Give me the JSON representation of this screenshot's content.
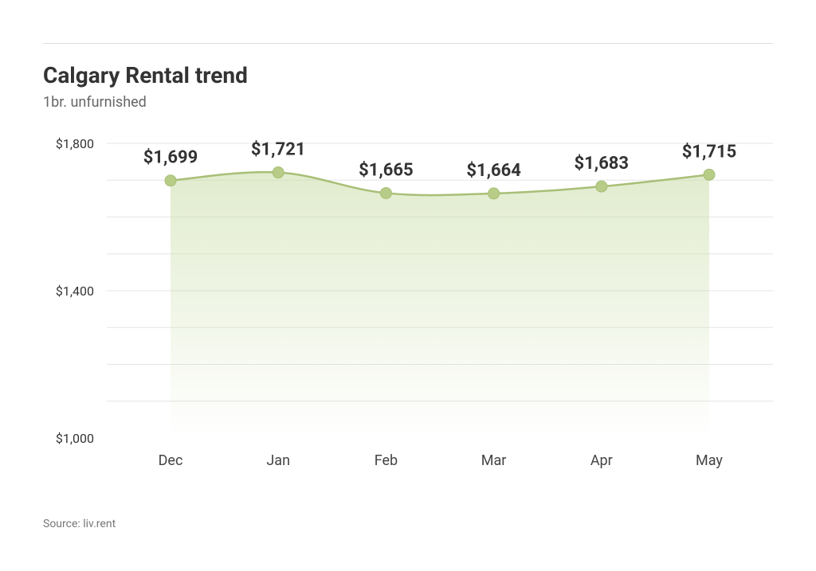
{
  "title": "Calgary Rental trend",
  "subtitle": "1br. unfurnished",
  "source": "Source: liv.rent",
  "chart": {
    "type": "line",
    "categories": [
      "Dec",
      "Jan",
      "Feb",
      "Mar",
      "Apr",
      "May"
    ],
    "values": [
      1699,
      1721,
      1665,
      1664,
      1683,
      1715
    ],
    "value_labels": [
      "$1,699",
      "$1,721",
      "$1,665",
      "$1,664",
      "$1,683",
      "$1,715"
    ],
    "ylim": [
      1000,
      1800
    ],
    "y_ticks": [
      1000,
      1400,
      1800
    ],
    "y_tick_labels": [
      "$1,000",
      "$1,400",
      "$1,800"
    ],
    "grid_values": [
      1700,
      1600,
      1500,
      1400,
      1300,
      1200,
      1100
    ],
    "line_color": "#a8bf76",
    "line_width": 2.5,
    "marker_radius": 7,
    "marker_fill": "#b7cc87",
    "marker_stroke": "#a8bf76",
    "marker_stroke_width": 1,
    "fill_top_color": "rgba(200,220,165,0.55)",
    "fill_bottom_color": "rgba(200,220,165,0.0)",
    "grid_color": "#e5e5e5",
    "background_color": "#ffffff",
    "title_fontsize": 28,
    "subtitle_fontsize": 18,
    "value_label_fontsize": 22,
    "axis_label_fontsize": 18,
    "y_tick_fontsize": 16,
    "text_color": "#333333"
  }
}
